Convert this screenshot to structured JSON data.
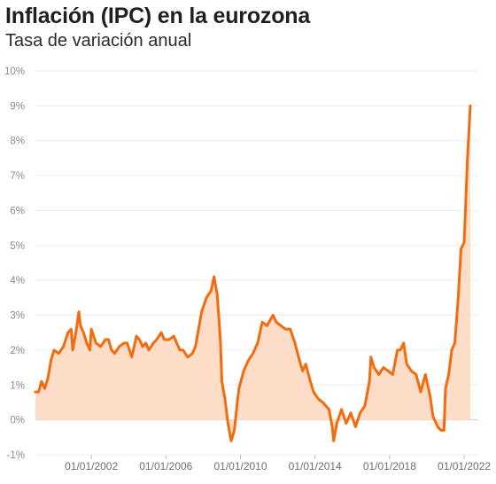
{
  "chart_data": {
    "type": "area",
    "title": "Inflación (IPC) en la eurozona",
    "subtitle": "Tasa de variación anual",
    "xlabel": "",
    "ylabel": "",
    "ylim": [
      -1,
      10
    ],
    "yticks": [
      -1,
      0,
      1,
      2,
      3,
      4,
      5,
      6,
      7,
      8,
      9,
      10
    ],
    "ytick_labels": [
      "-1%",
      "0%",
      "1%",
      "2%",
      "3%",
      "4%",
      "5%",
      "6%",
      "7%",
      "8%",
      "9%",
      "10%"
    ],
    "xlim": [
      1999.0,
      2022.33
    ],
    "xticks": [
      2002,
      2006,
      2010,
      2014,
      2018,
      2022
    ],
    "xtick_labels": [
      "01/01/2002",
      "01/01/2006",
      "01/01/2010",
      "01/01/2014",
      "01/01/2018",
      "01/01/2022"
    ],
    "grid": true,
    "legend": "none",
    "line_color": "#f26b0f",
    "fill_color": "#fdddc8",
    "series": [
      {
        "x": [
          1999.0,
          1999.17,
          1999.33,
          1999.5,
          1999.67,
          1999.83,
          2000.0,
          2000.25,
          2000.5,
          2000.75,
          2000.92,
          2001.0,
          2001.17,
          2001.33,
          2001.42,
          2001.58,
          2001.75,
          2001.92,
          2002.0,
          2002.25,
          2002.5,
          2002.75,
          2002.92,
          2003.08,
          2003.25,
          2003.5,
          2003.75,
          2003.92,
          2004.17,
          2004.42,
          2004.58,
          2004.75,
          2004.92,
          2005.08,
          2005.33,
          2005.5,
          2005.75,
          2005.92,
          2006.17,
          2006.42,
          2006.58,
          2006.75,
          2006.92,
          2007.17,
          2007.42,
          2007.58,
          2007.75,
          2007.92,
          2008.17,
          2008.42,
          2008.58,
          2008.75,
          2008.92,
          2009.0,
          2009.17,
          2009.33,
          2009.5,
          2009.67,
          2009.83,
          2009.92,
          2010.17,
          2010.42,
          2010.67,
          2010.92,
          2011.17,
          2011.42,
          2011.75,
          2011.92,
          2012.17,
          2012.42,
          2012.67,
          2012.92,
          2013.17,
          2013.33,
          2013.5,
          2013.75,
          2013.92,
          2014.17,
          2014.42,
          2014.58,
          2014.75,
          2014.92,
          2015.0,
          2015.17,
          2015.42,
          2015.67,
          2015.92,
          2016.17,
          2016.42,
          2016.67,
          2016.92,
          2017.0,
          2017.17,
          2017.42,
          2017.67,
          2017.92,
          2018.17,
          2018.42,
          2018.58,
          2018.75,
          2018.92,
          2019.17,
          2019.42,
          2019.67,
          2019.92,
          2020.17,
          2020.33,
          2020.58,
          2020.75,
          2020.92,
          2021.0,
          2021.17,
          2021.33,
          2021.5,
          2021.67,
          2021.83,
          2021.92,
          2022.0,
          2022.17,
          2022.33
        ],
        "y": [
          0.8,
          0.8,
          1.1,
          0.9,
          1.2,
          1.7,
          2.0,
          1.9,
          2.1,
          2.5,
          2.6,
          2.0,
          2.5,
          3.1,
          2.7,
          2.5,
          2.2,
          2.0,
          2.6,
          2.2,
          2.1,
          2.3,
          2.3,
          2.0,
          1.9,
          2.1,
          2.2,
          2.2,
          1.8,
          2.4,
          2.3,
          2.1,
          2.2,
          2.0,
          2.2,
          2.3,
          2.5,
          2.3,
          2.3,
          2.4,
          2.2,
          2.0,
          2.0,
          1.8,
          1.9,
          2.1,
          2.6,
          3.1,
          3.5,
          3.7,
          4.1,
          3.6,
          2.3,
          1.1,
          0.6,
          -0.1,
          -0.6,
          -0.3,
          0.5,
          0.9,
          1.4,
          1.7,
          1.9,
          2.2,
          2.8,
          2.7,
          3.0,
          2.8,
          2.7,
          2.6,
          2.6,
          2.2,
          1.7,
          1.4,
          1.6,
          1.1,
          0.8,
          0.6,
          0.5,
          0.4,
          0.3,
          -0.2,
          -0.6,
          -0.1,
          0.3,
          -0.1,
          0.2,
          -0.2,
          0.2,
          0.4,
          1.1,
          1.8,
          1.5,
          1.3,
          1.5,
          1.4,
          1.3,
          2.0,
          2.0,
          2.2,
          1.6,
          1.4,
          1.3,
          0.8,
          1.3,
          0.7,
          0.1,
          -0.2,
          -0.3,
          -0.3,
          0.9,
          1.3,
          2.0,
          2.2,
          3.4,
          4.9,
          5.0,
          5.1,
          7.4,
          9.0
        ]
      }
    ]
  }
}
